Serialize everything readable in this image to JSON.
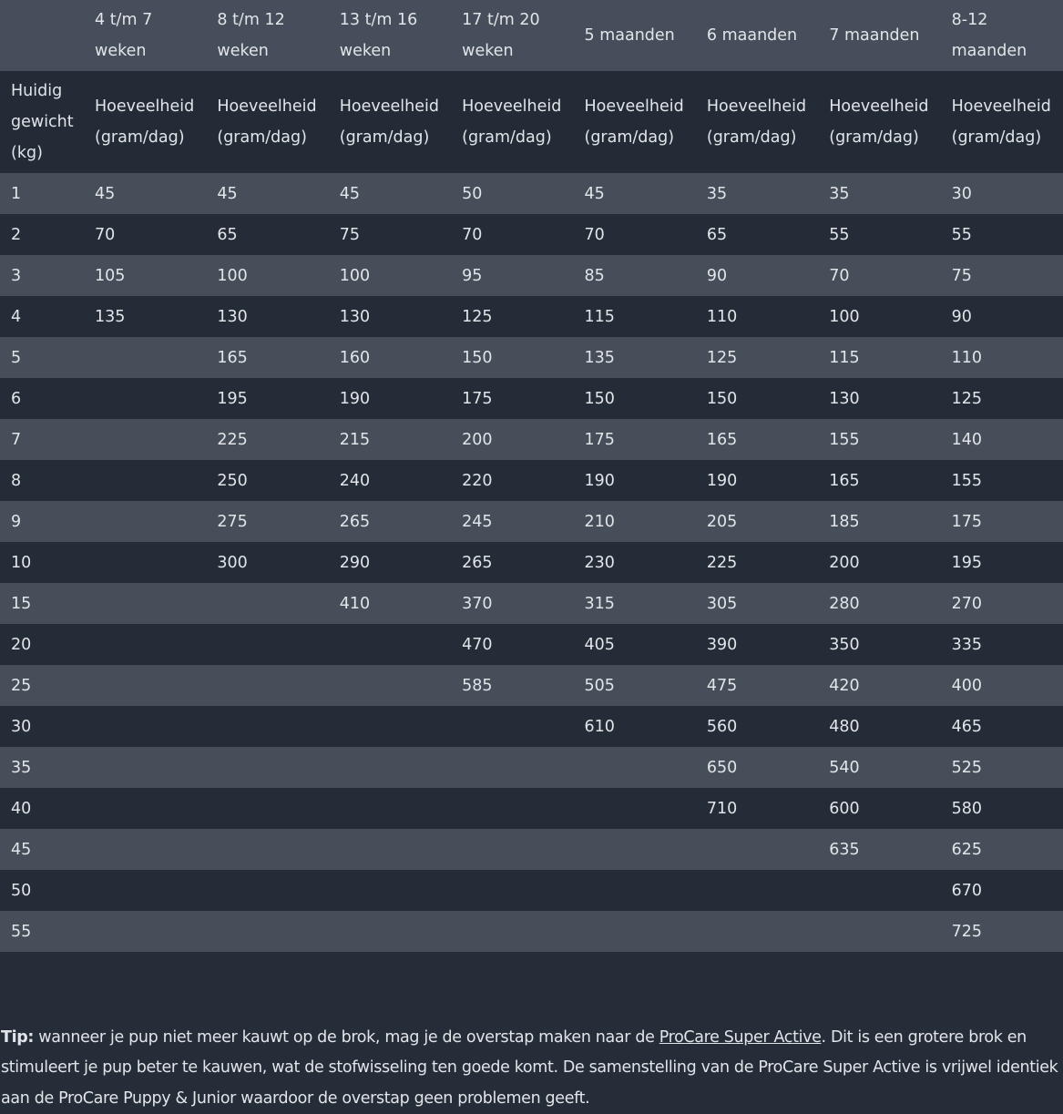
{
  "table": {
    "age_headers": [
      "",
      "4 t/m 7 weken",
      "8 t/m 12 weken",
      "13 t/m 16 weken",
      "17 t/m 20 weken",
      "5 maanden",
      "6 maanden",
      "7 maanden",
      "8-12 maanden"
    ],
    "sub_headers": [
      "Huidig gewicht (kg)",
      "Hoeveelheid (gram/dag)",
      "Hoeveelheid (gram/dag)",
      "Hoeveelheid (gram/dag)",
      "Hoeveelheid (gram/dag)",
      "Hoeveelheid (gram/dag)",
      "Hoeveelheid (gram/dag)",
      "Hoeveelheid (gram/dag)",
      "Hoeveelheid (gram/dag)"
    ],
    "rows": [
      [
        "1",
        "45",
        "45",
        "45",
        "50",
        "45",
        "35",
        "35",
        "30"
      ],
      [
        "2",
        "70",
        "65",
        "75",
        "70",
        "70",
        "65",
        "55",
        "55"
      ],
      [
        "3",
        "105",
        "100",
        "100",
        "95",
        "85",
        "90",
        "70",
        "75"
      ],
      [
        "4",
        "135",
        "130",
        "130",
        "125",
        "115",
        "110",
        "100",
        "90"
      ],
      [
        "5",
        "",
        "165",
        "160",
        "150",
        "135",
        "125",
        "115",
        "110"
      ],
      [
        "6",
        "",
        "195",
        "190",
        "175",
        "150",
        "150",
        "130",
        "125"
      ],
      [
        "7",
        "",
        "225",
        "215",
        "200",
        "175",
        "165",
        "155",
        "140"
      ],
      [
        "8",
        "",
        "250",
        "240",
        "220",
        "190",
        "190",
        "165",
        "155"
      ],
      [
        "9",
        "",
        "275",
        "265",
        "245",
        "210",
        "205",
        "185",
        "175"
      ],
      [
        "10",
        "",
        "300",
        "290",
        "265",
        "230",
        "225",
        "200",
        "195"
      ],
      [
        "15",
        "",
        "",
        "410",
        "370",
        "315",
        "305",
        "280",
        "270"
      ],
      [
        "20",
        "",
        "",
        "",
        "470",
        "405",
        "390",
        "350",
        "335"
      ],
      [
        "25",
        "",
        "",
        "",
        "585",
        "505",
        "475",
        "420",
        "400"
      ],
      [
        "30",
        "",
        "",
        "",
        "",
        "610",
        "560",
        "480",
        "465"
      ],
      [
        "35",
        "",
        "",
        "",
        "",
        "",
        "650",
        "540",
        "525"
      ],
      [
        "40",
        "",
        "",
        "",
        "",
        "",
        "710",
        "600",
        "580"
      ],
      [
        "45",
        "",
        "",
        "",
        "",
        "",
        "",
        "635",
        "625"
      ],
      [
        "50",
        "",
        "",
        "",
        "",
        "",
        "",
        "",
        "670"
      ],
      [
        "55",
        "",
        "",
        "",
        "",
        "",
        "",
        "",
        "725"
      ]
    ]
  },
  "tip": {
    "label": "Tip:",
    "text_before": " wanneer je pup niet meer kauwt op de brok, mag je de overstap maken naar de ",
    "link": "ProCare Super Active",
    "text_after": ". Dit is een grotere brok en stimuleert je pup beter te kauwen, wat de stofwisseling ten goede komt. De samenstelling van de ProCare Super Active is vrijwel identiek aan de ProCare Puppy & Junior waardoor de overstap geen problemen geeft."
  },
  "colors": {
    "background": "#252d39",
    "row_light": "#454e59",
    "row_dark": "#242c38",
    "text": "#e2e5e8"
  }
}
